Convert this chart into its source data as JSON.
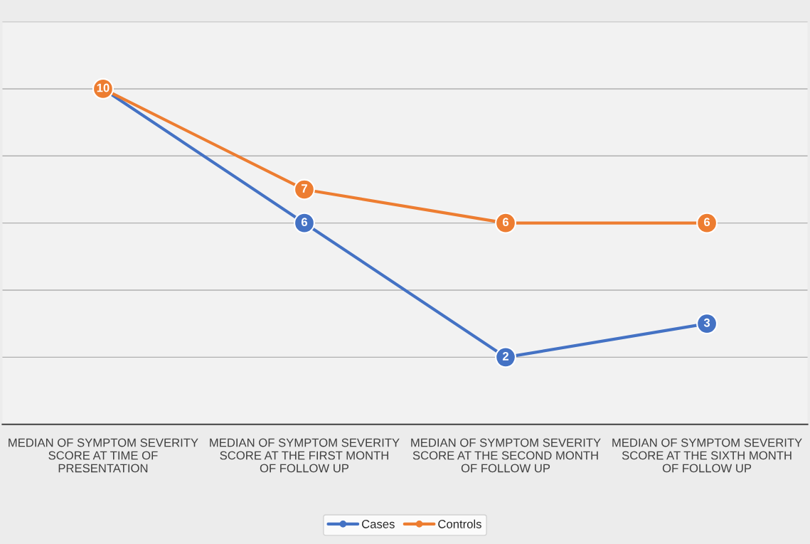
{
  "chart_data": {
    "type": "line",
    "categories": [
      "MEDIAN OF SYMPTOM SEVERITY SCORE AT TIME OF PRESENTATION",
      "MEDIAN OF SYMPTOM SEVERITY SCORE AT THE FIRST MONTH OF FOLLOW UP",
      "MEDIAN OF SYMPTOM SEVERITY SCORE AT THE SECOND MONTH OF FOLLOW UP",
      "MEDIAN OF SYMPTOM SEVERITY SCORE AT THE SIXTH MONTH OF FOLLOW UP"
    ],
    "series": [
      {
        "name": "Cases",
        "color": "#4472c4",
        "values": [
          10,
          6,
          2,
          3
        ],
        "value_labels": [
          null,
          "6",
          "2",
          "3"
        ]
      },
      {
        "name": "Controls",
        "color": "#ed7d31",
        "values": [
          10,
          7,
          6,
          6
        ],
        "value_labels": [
          "10",
          "7",
          "6",
          "6"
        ]
      }
    ],
    "ylim": [
      0,
      12
    ],
    "yticks": [
      {
        "value": 0,
        "label": null
      },
      {
        "value": 2,
        "label": null
      },
      {
        "value": 4,
        "label": null
      },
      {
        "value": 6,
        "label": null
      },
      {
        "value": 8,
        "label": null
      },
      {
        "value": 10,
        "label": null
      },
      {
        "value": 12,
        "label": null
      }
    ],
    "tick_labels": "x",
    "grid": "y",
    "legend": "bottom",
    "marker": "circle",
    "line_style": "solid"
  }
}
